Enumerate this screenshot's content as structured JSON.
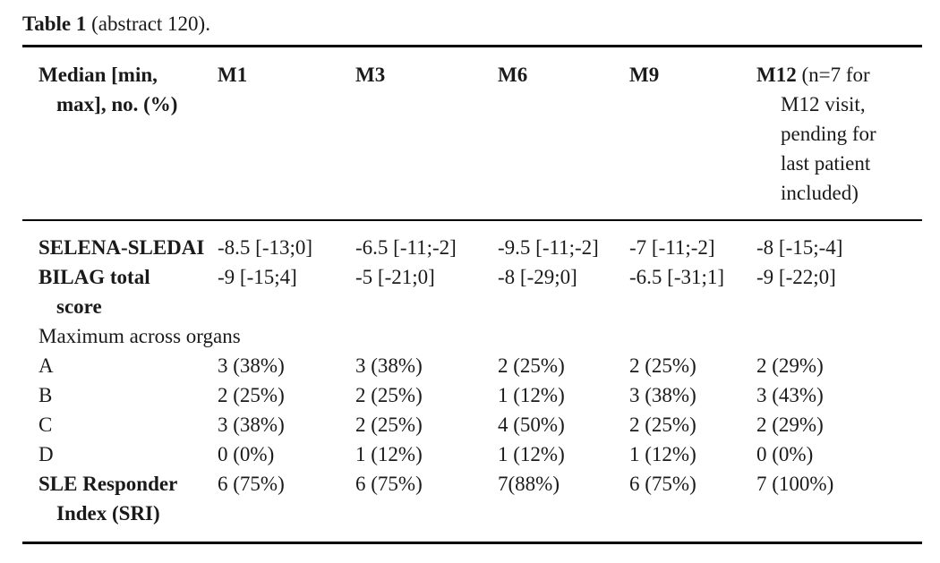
{
  "caption": {
    "bold": "Table 1",
    "rest": " (abstract 120)."
  },
  "table": {
    "header": {
      "label_lines": [
        "Median [min,",
        "max], no. (%)"
      ],
      "columns": [
        {
          "label": "M1"
        },
        {
          "label": "M3"
        },
        {
          "label": "M6"
        },
        {
          "label": "M9"
        },
        {
          "label": "M12",
          "note_first": " (n=7 for",
          "note_lines": [
            "M12 visit,",
            "pending for",
            "last patient",
            "included)"
          ]
        }
      ]
    },
    "rows": [
      {
        "label_lines": [
          "SELENA-SLEDAI"
        ],
        "bold": true,
        "span": false,
        "values": [
          "-8.5 [-13;0]",
          "-6.5 [-11;-2]",
          "-9.5 [-11;-2]",
          "-7 [-11;-2]",
          "-8 [-15;-4]"
        ]
      },
      {
        "label_lines": [
          "BILAG total",
          "score"
        ],
        "bold": true,
        "span": false,
        "values": [
          "-9 [-15;4]",
          "-5 [-21;0]",
          "-8 [-29;0]",
          "-6.5 [-31;1]",
          "-9 [-22;0]"
        ]
      },
      {
        "label_lines": [
          "Maximum across organs"
        ],
        "bold": false,
        "span": true,
        "values": []
      },
      {
        "label_lines": [
          "A"
        ],
        "bold": false,
        "span": false,
        "values": [
          "3 (38%)",
          "3 (38%)",
          "2 (25%)",
          "2 (25%)",
          "2 (29%)"
        ]
      },
      {
        "label_lines": [
          "B"
        ],
        "bold": false,
        "span": false,
        "values": [
          "2 (25%)",
          "2 (25%)",
          "1 (12%)",
          "3 (38%)",
          "3 (43%)"
        ]
      },
      {
        "label_lines": [
          "C"
        ],
        "bold": false,
        "span": false,
        "values": [
          "3 (38%)",
          "2 (25%)",
          "4 (50%)",
          "2 (25%)",
          "2 (29%)"
        ]
      },
      {
        "label_lines": [
          "D"
        ],
        "bold": false,
        "span": false,
        "values": [
          "0 (0%)",
          "1 (12%)",
          "1 (12%)",
          "1 (12%)",
          "0 (0%)"
        ]
      },
      {
        "label_lines": [
          "SLE Responder",
          "Index (SRI)"
        ],
        "bold": true,
        "span": false,
        "values": [
          "6 (75%)",
          "6 (75%)",
          "7(88%)",
          "6 (75%)",
          "7 (100%)"
        ]
      }
    ],
    "colors": {
      "text": "#1a1a1a",
      "rule": "#000000",
      "background": "#ffffff"
    }
  }
}
